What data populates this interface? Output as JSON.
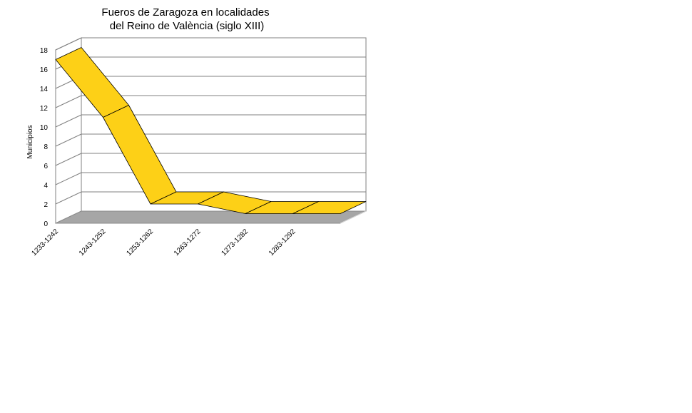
{
  "chart_data": {
    "type": "area",
    "title": [
      "Fueros de Zaragoza en localidades",
      "del Reino de València (siglo XIII)"
    ],
    "ylabel": "Municipios",
    "xlabel": "",
    "categories": [
      "1233-1242",
      "1243-1252",
      "1253-1262",
      "1263-1272",
      "1273-1282",
      "1283-1292"
    ],
    "values": [
      17,
      11,
      2,
      2,
      1,
      1
    ],
    "ylim": [
      0,
      18
    ],
    "yticks": [
      0,
      2,
      4,
      6,
      8,
      10,
      12,
      14,
      16,
      18
    ],
    "grid": true,
    "legend": "none",
    "colors": {
      "ribbon": "#FDD017",
      "ribbon_top": "#FFD629",
      "floor": "#A6A6A6",
      "grid": "#808080"
    }
  }
}
